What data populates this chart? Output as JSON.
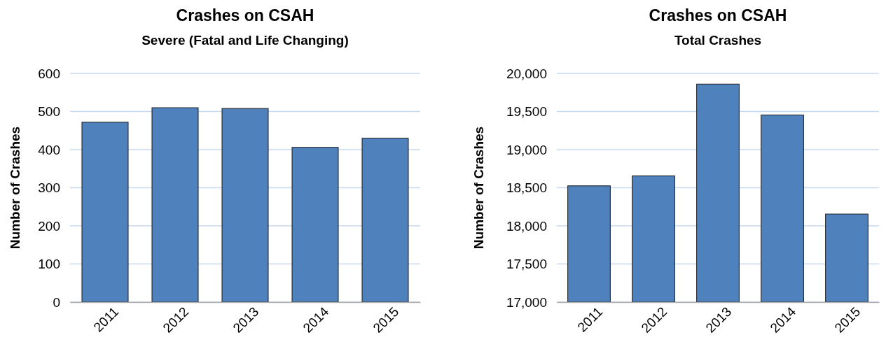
{
  "chart_data": [
    {
      "type": "bar",
      "title": "Crashes on CSAH",
      "subtitle": "Severe (Fatal and Life Changing)",
      "ylabel": "Number of Crashes",
      "categories": [
        "2011",
        "2012",
        "2013",
        "2014",
        "2015"
      ],
      "values": [
        472,
        510,
        508,
        406,
        430
      ],
      "color": "#4f81bd",
      "ylim": [
        0,
        600
      ],
      "yticks": [
        0,
        100,
        200,
        300,
        400,
        500,
        600
      ],
      "grid": "y"
    },
    {
      "type": "bar",
      "title": "Crashes on CSAH",
      "subtitle": "Total Crashes",
      "ylabel": "Number of Crashes",
      "categories": [
        "2011",
        "2012",
        "2013",
        "2014",
        "2015"
      ],
      "values": [
        18525,
        18655,
        19860,
        19455,
        18155
      ],
      "color": "#4f81bd",
      "ylim": [
        17000,
        20000
      ],
      "yticks": [
        {
          "value": 17000,
          "label": "17,000"
        },
        {
          "value": 17500,
          "label": "17,500"
        },
        {
          "value": 18000,
          "label": "18,000"
        },
        {
          "value": 18500,
          "label": "18,500"
        },
        {
          "value": 19000,
          "label": "19,000"
        },
        {
          "value": 19500,
          "label": "19,500"
        },
        {
          "value": 20000,
          "label": "20,000"
        }
      ],
      "grid": "y"
    }
  ]
}
